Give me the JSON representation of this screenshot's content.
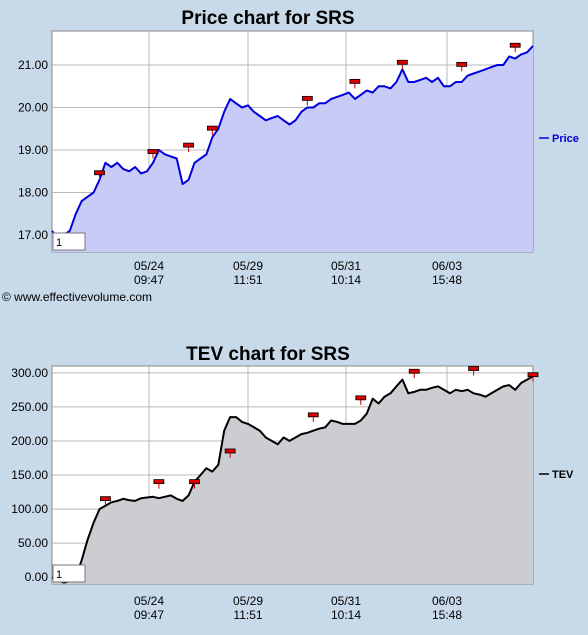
{
  "copyright": "© www.effectivevolume.com",
  "chart_data": [
    {
      "type": "area",
      "title": "Price chart for SRS",
      "xlabel": "",
      "ylabel": "",
      "x_ticks": [
        {
          "date": "05/24",
          "time": "09:47"
        },
        {
          "date": "05/29",
          "time": "11:51"
        },
        {
          "date": "05/31",
          "time": "10:14"
        },
        {
          "date": "06/03",
          "time": "15:48"
        }
      ],
      "y_ticks": [
        "17.00",
        "18.00",
        "19.00",
        "20.00",
        "21.00"
      ],
      "ylim": [
        16.6,
        21.8
      ],
      "legend": "Price",
      "legend_placement": "right",
      "box_label": "1",
      "line_color": "#0000dd",
      "fill_color": "#c9cbf7",
      "grid": true,
      "series": [
        {
          "name": "Price",
          "values": [
            17.1,
            16.9,
            17.0,
            17.1,
            17.5,
            17.8,
            17.9,
            18.0,
            18.3,
            18.7,
            18.6,
            18.7,
            18.55,
            18.5,
            18.6,
            18.45,
            18.5,
            18.7,
            19.0,
            18.9,
            18.85,
            18.8,
            18.2,
            18.3,
            18.7,
            18.8,
            18.9,
            19.3,
            19.5,
            19.9,
            20.2,
            20.1,
            20.0,
            20.05,
            19.9,
            19.8,
            19.7,
            19.75,
            19.8,
            19.7,
            19.6,
            19.7,
            19.9,
            20.0,
            20.0,
            20.1,
            20.1,
            20.2,
            20.25,
            20.3,
            20.35,
            20.2,
            20.3,
            20.4,
            20.35,
            20.5,
            20.5,
            20.45,
            20.6,
            20.9,
            20.6,
            20.6,
            20.65,
            20.7,
            20.6,
            20.7,
            20.5,
            20.5,
            20.6,
            20.6,
            20.75,
            20.8,
            20.85,
            20.9,
            20.95,
            21.0,
            21.0,
            21.2,
            21.15,
            21.25,
            21.3,
            21.45
          ]
        }
      ],
      "markers": [
        {
          "index": 8,
          "value": 18.3
        },
        {
          "index": 17,
          "value": 18.8
        },
        {
          "index": 23,
          "value": 18.95
        },
        {
          "index": 27,
          "value": 19.35
        },
        {
          "index": 43,
          "value": 20.05
        },
        {
          "index": 51,
          "value": 20.45
        },
        {
          "index": 59,
          "value": 20.9
        },
        {
          "index": 69,
          "value": 20.85
        },
        {
          "index": 78,
          "value": 21.3
        }
      ]
    },
    {
      "type": "area",
      "title": "TEV chart for SRS",
      "xlabel": "",
      "ylabel": "",
      "x_ticks": [
        {
          "date": "05/24",
          "time": "09:47"
        },
        {
          "date": "05/29",
          "time": "11:51"
        },
        {
          "date": "05/31",
          "time": "10:14"
        },
        {
          "date": "06/03",
          "time": "15:48"
        }
      ],
      "y_ticks": [
        "0.00",
        "50.00",
        "100.00",
        "150.00",
        "200.00",
        "250.00",
        "300.00"
      ],
      "ylim": [
        -10,
        310
      ],
      "legend": "TEV",
      "legend_placement": "right",
      "box_label": "1",
      "line_color": "#000000",
      "fill_color": "#cbcdd0",
      "grid": true,
      "series": [
        {
          "name": "TEV",
          "values": [
            0,
            -5,
            -8,
            -6,
            0,
            25,
            55,
            80,
            100,
            105,
            110,
            112,
            115,
            113,
            112,
            116,
            117,
            118,
            116,
            118,
            120,
            115,
            112,
            120,
            140,
            150,
            160,
            155,
            165,
            215,
            235,
            235,
            228,
            225,
            220,
            215,
            205,
            200,
            195,
            205,
            200,
            205,
            210,
            212,
            215,
            218,
            220,
            230,
            228,
            225,
            225,
            225,
            230,
            240,
            262,
            255,
            265,
            270,
            280,
            290,
            270,
            272,
            275,
            275,
            278,
            280,
            275,
            270,
            275,
            273,
            275,
            270,
            268,
            265,
            270,
            275,
            280,
            282,
            275,
            285,
            290,
            295
          ]
        }
      ],
      "markers": [
        {
          "index": 9,
          "value": 105
        },
        {
          "index": 18,
          "value": 130
        },
        {
          "index": 24,
          "value": 130
        },
        {
          "index": 30,
          "value": 175
        },
        {
          "index": 44,
          "value": 228
        },
        {
          "index": 52,
          "value": 253
        },
        {
          "index": 61,
          "value": 292
        },
        {
          "index": 71,
          "value": 296
        },
        {
          "index": 81,
          "value": 287
        }
      ]
    }
  ]
}
